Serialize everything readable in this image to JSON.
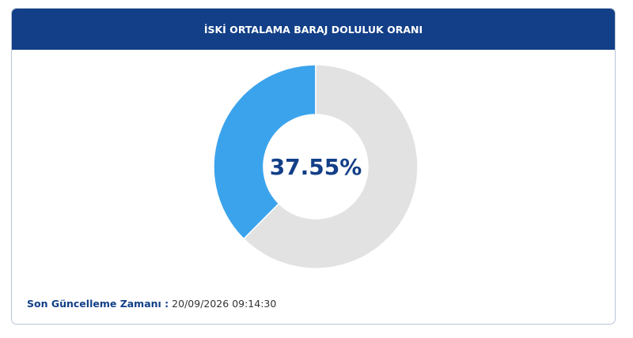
{
  "header": {
    "title": "İSKİ ORTALAMA BARAJ DOLULUK ORANI"
  },
  "chart_data": {
    "type": "donut",
    "values": [
      37.55,
      62.45
    ],
    "value_labels": [
      "37.55%",
      null
    ],
    "colors": [
      "#3ba3ec",
      "#e2e2e2"
    ],
    "direction": "counterclockwise"
  },
  "footer": {
    "label": "Son Güncelleme Zamanı :",
    "value": "20/09/2026 09:14:30"
  }
}
